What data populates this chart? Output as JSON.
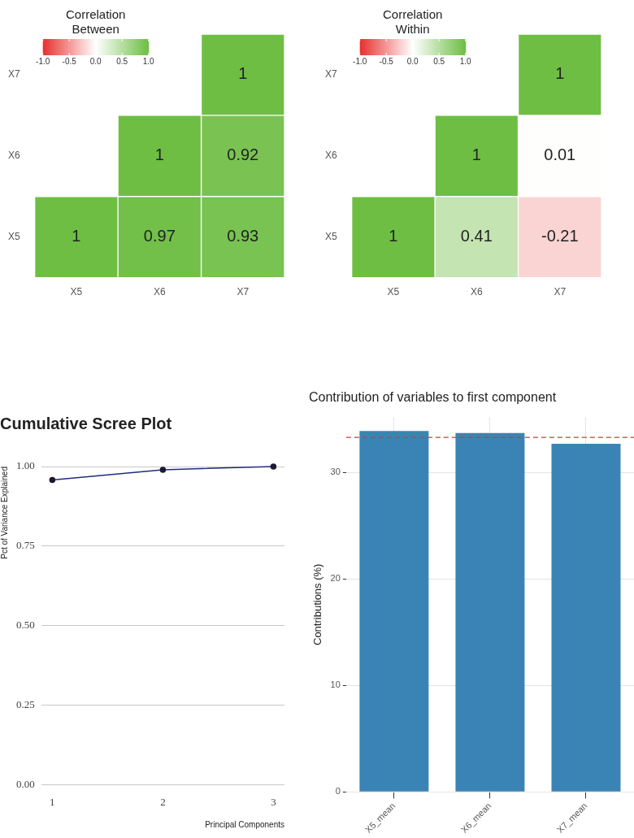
{
  "chart_data": [
    {
      "type": "heatmap",
      "legend_title": "Correlation Between",
      "categories": [
        "X5",
        "X6",
        "X7"
      ],
      "y_categories": [
        "X7",
        "X6",
        "X5"
      ],
      "cells": [
        [
          null,
          null,
          1
        ],
        [
          null,
          1,
          0.92
        ],
        [
          1,
          0.97,
          0.93
        ]
      ],
      "data_labels": true,
      "clim": [
        -1,
        1
      ],
      "cticks": [
        {
          "value": -1,
          "label": "-1.0"
        },
        {
          "value": -0.5,
          "label": "-0.5"
        },
        {
          "value": 0,
          "label": "0.0"
        },
        {
          "value": 0.5,
          "label": "0.5"
        },
        {
          "value": 1,
          "label": "1.0"
        }
      ]
    },
    {
      "type": "heatmap",
      "legend_title": "Correlation Within",
      "categories": [
        "X5",
        "X6",
        "X7"
      ],
      "y_categories": [
        "X7",
        "X6",
        "X5"
      ],
      "cells": [
        [
          null,
          null,
          1
        ],
        [
          null,
          1,
          0.01
        ],
        [
          1,
          0.41,
          -0.21
        ]
      ],
      "data_labels": true,
      "clim": [
        -1,
        1
      ],
      "cticks": [
        {
          "value": -1,
          "label": "-1.0"
        },
        {
          "value": -0.5,
          "label": "-0.5"
        },
        {
          "value": 0,
          "label": "0.0"
        },
        {
          "value": 0.5,
          "label": "0.5"
        },
        {
          "value": 1,
          "label": "1.0"
        }
      ]
    },
    {
      "type": "line",
      "title": "Cumulative Scree Plot",
      "xlabel": "Principal Components",
      "ylabel": "Pct of Variance Explained",
      "x": [
        1,
        2,
        3
      ],
      "series": [
        {
          "color": "#1f2d7a",
          "values": [
            0.958,
            0.99,
            1.0
          ]
        }
      ],
      "marker": "circle",
      "xlim": [
        0.9,
        3.1
      ],
      "ylim": [
        0,
        1
      ],
      "xticks": [
        1,
        2,
        3
      ],
      "yticks": [
        {
          "value": 0,
          "label": "0.00"
        },
        {
          "value": 0.25,
          "label": "0.25"
        },
        {
          "value": 0.5,
          "label": "0.50"
        },
        {
          "value": 0.75,
          "label": "0.75"
        },
        {
          "value": 1,
          "label": "1.00"
        }
      ],
      "grid": "y"
    },
    {
      "type": "bar",
      "title": "Contribution of variables to first component",
      "ylabel": "Contributions (%)",
      "categories": [
        "X5_mean",
        "X6_mean",
        "X7_mean"
      ],
      "values": [
        33.9,
        33.7,
        32.7
      ],
      "color": "#3a84b5",
      "ylim": [
        0,
        35.2
      ],
      "yticks": [
        0,
        10,
        20,
        30
      ],
      "grid": true,
      "ref_lines": [
        {
          "axis": "y",
          "value": 33.3,
          "color": "#e03030",
          "line_style": "dashed"
        }
      ]
    }
  ]
}
